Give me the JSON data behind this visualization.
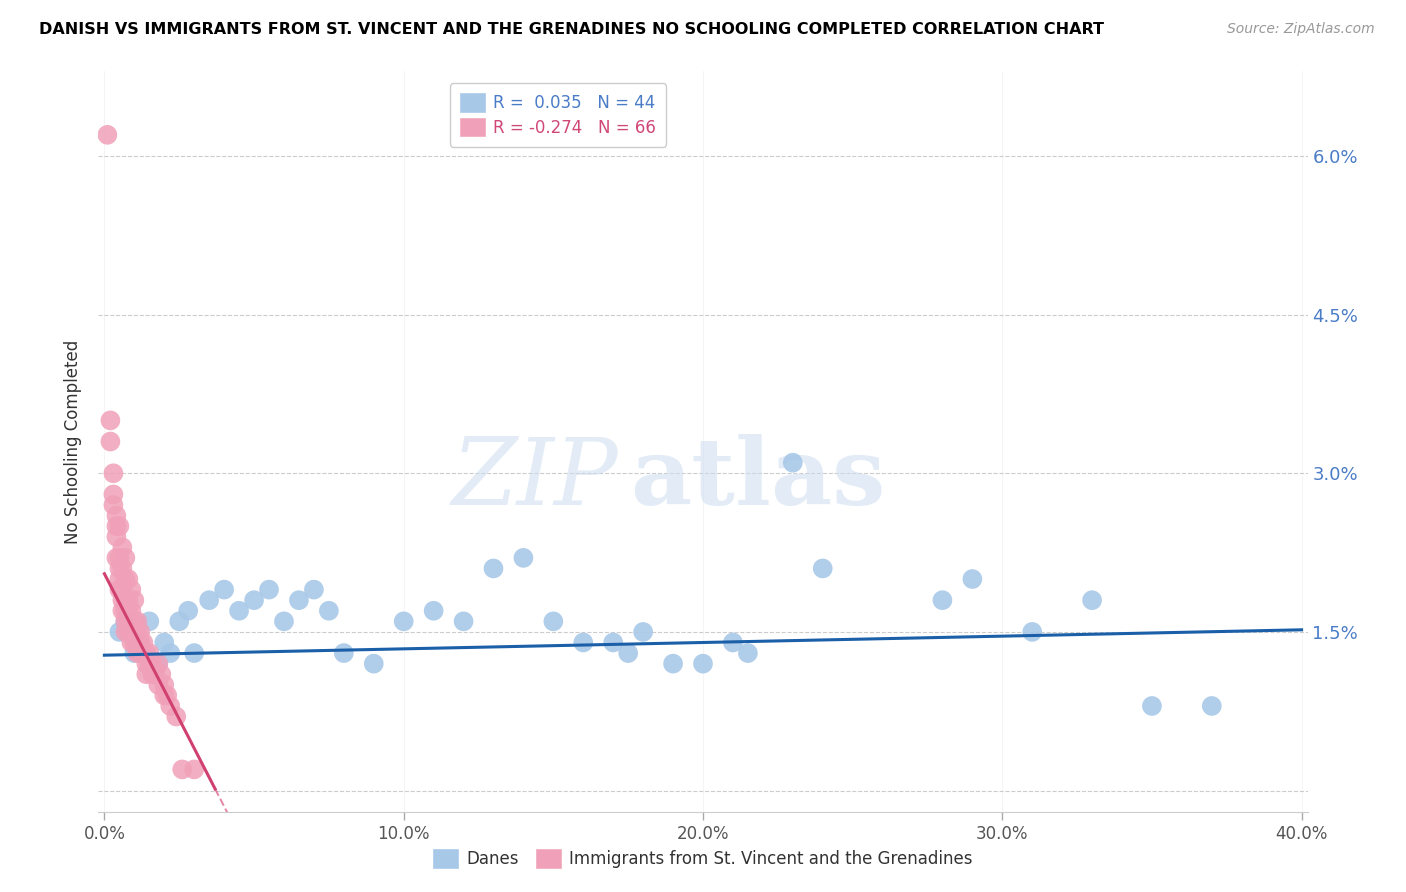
{
  "title": "DANISH VS IMMIGRANTS FROM ST. VINCENT AND THE GRENADINES NO SCHOOLING COMPLETED CORRELATION CHART",
  "source": "Source: ZipAtlas.com",
  "ylabel": "No Schooling Completed",
  "xlim": [
    -0.002,
    0.402
  ],
  "ylim": [
    -0.002,
    0.068
  ],
  "yticks": [
    0.0,
    0.015,
    0.03,
    0.045,
    0.06
  ],
  "ytick_labels": [
    "",
    "1.5%",
    "3.0%",
    "4.5%",
    "6.0%"
  ],
  "xticks": [
    0.0,
    0.1,
    0.2,
    0.3,
    0.4
  ],
  "xtick_labels": [
    "0.0%",
    "10.0%",
    "20.0%",
    "30.0%",
    "40.0%"
  ],
  "blue_R": 0.035,
  "blue_N": 44,
  "pink_R": -0.274,
  "pink_N": 66,
  "blue_color": "#a8c8e8",
  "pink_color": "#f0a0b8",
  "blue_line_color": "#1a5fa8",
  "pink_line_color": "#d04070",
  "blue_scatter": [
    [
      0.005,
      0.015
    ],
    [
      0.007,
      0.016
    ],
    [
      0.01,
      0.013
    ],
    [
      0.012,
      0.014
    ],
    [
      0.015,
      0.016
    ],
    [
      0.018,
      0.012
    ],
    [
      0.02,
      0.014
    ],
    [
      0.022,
      0.013
    ],
    [
      0.025,
      0.016
    ],
    [
      0.028,
      0.017
    ],
    [
      0.03,
      0.013
    ],
    [
      0.035,
      0.018
    ],
    [
      0.04,
      0.019
    ],
    [
      0.045,
      0.017
    ],
    [
      0.05,
      0.018
    ],
    [
      0.055,
      0.019
    ],
    [
      0.06,
      0.016
    ],
    [
      0.065,
      0.018
    ],
    [
      0.07,
      0.019
    ],
    [
      0.075,
      0.017
    ],
    [
      0.08,
      0.013
    ],
    [
      0.09,
      0.012
    ],
    [
      0.1,
      0.016
    ],
    [
      0.11,
      0.017
    ],
    [
      0.12,
      0.016
    ],
    [
      0.13,
      0.021
    ],
    [
      0.14,
      0.022
    ],
    [
      0.15,
      0.016
    ],
    [
      0.16,
      0.014
    ],
    [
      0.17,
      0.014
    ],
    [
      0.175,
      0.013
    ],
    [
      0.18,
      0.015
    ],
    [
      0.19,
      0.012
    ],
    [
      0.2,
      0.012
    ],
    [
      0.21,
      0.014
    ],
    [
      0.215,
      0.013
    ],
    [
      0.23,
      0.031
    ],
    [
      0.24,
      0.021
    ],
    [
      0.28,
      0.018
    ],
    [
      0.29,
      0.02
    ],
    [
      0.31,
      0.015
    ],
    [
      0.33,
      0.018
    ],
    [
      0.35,
      0.008
    ],
    [
      0.37,
      0.008
    ]
  ],
  "pink_scatter": [
    [
      0.001,
      0.062
    ],
    [
      0.002,
      0.035
    ],
    [
      0.002,
      0.033
    ],
    [
      0.003,
      0.03
    ],
    [
      0.003,
      0.028
    ],
    [
      0.003,
      0.027
    ],
    [
      0.004,
      0.026
    ],
    [
      0.004,
      0.025
    ],
    [
      0.004,
      0.024
    ],
    [
      0.004,
      0.022
    ],
    [
      0.005,
      0.025
    ],
    [
      0.005,
      0.022
    ],
    [
      0.005,
      0.021
    ],
    [
      0.005,
      0.02
    ],
    [
      0.005,
      0.019
    ],
    [
      0.006,
      0.023
    ],
    [
      0.006,
      0.021
    ],
    [
      0.006,
      0.019
    ],
    [
      0.006,
      0.018
    ],
    [
      0.006,
      0.017
    ],
    [
      0.007,
      0.022
    ],
    [
      0.007,
      0.02
    ],
    [
      0.007,
      0.018
    ],
    [
      0.007,
      0.017
    ],
    [
      0.007,
      0.016
    ],
    [
      0.007,
      0.015
    ],
    [
      0.008,
      0.02
    ],
    [
      0.008,
      0.018
    ],
    [
      0.008,
      0.017
    ],
    [
      0.008,
      0.016
    ],
    [
      0.008,
      0.015
    ],
    [
      0.009,
      0.019
    ],
    [
      0.009,
      0.017
    ],
    [
      0.009,
      0.015
    ],
    [
      0.009,
      0.014
    ],
    [
      0.01,
      0.018
    ],
    [
      0.01,
      0.016
    ],
    [
      0.01,
      0.015
    ],
    [
      0.01,
      0.014
    ],
    [
      0.011,
      0.016
    ],
    [
      0.011,
      0.015
    ],
    [
      0.011,
      0.014
    ],
    [
      0.011,
      0.013
    ],
    [
      0.012,
      0.015
    ],
    [
      0.012,
      0.014
    ],
    [
      0.012,
      0.013
    ],
    [
      0.013,
      0.014
    ],
    [
      0.013,
      0.013
    ],
    [
      0.014,
      0.013
    ],
    [
      0.014,
      0.012
    ],
    [
      0.014,
      0.011
    ],
    [
      0.015,
      0.013
    ],
    [
      0.015,
      0.012
    ],
    [
      0.016,
      0.012
    ],
    [
      0.016,
      0.011
    ],
    [
      0.017,
      0.011
    ],
    [
      0.018,
      0.012
    ],
    [
      0.018,
      0.01
    ],
    [
      0.019,
      0.011
    ],
    [
      0.02,
      0.01
    ],
    [
      0.02,
      0.009
    ],
    [
      0.021,
      0.009
    ],
    [
      0.022,
      0.008
    ],
    [
      0.024,
      0.007
    ],
    [
      0.026,
      0.002
    ],
    [
      0.03,
      0.002
    ]
  ],
  "watermark_zip": "ZIP",
  "watermark_atlas": "atlas",
  "legend_blue_label": "Danes",
  "legend_pink_label": "Immigrants from St. Vincent and the Grenadines"
}
